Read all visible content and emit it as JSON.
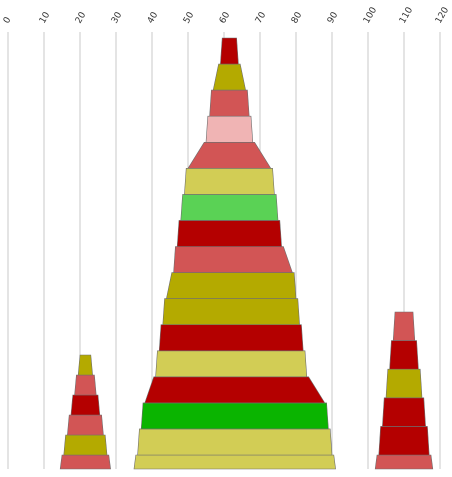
{
  "chart_data": {
    "type": "stacked-pyramid",
    "xlim": [
      0,
      120
    ],
    "xticks": [
      0,
      10,
      20,
      30,
      40,
      50,
      60,
      70,
      80,
      90,
      100,
      110,
      120
    ],
    "grid": true,
    "palette": {
      "dark_red": "#b40000",
      "red": "#d25555",
      "pink": "#f0b4b4",
      "olive": "#b4aa00",
      "khaki": "#d2cd55",
      "green": "#5ad255",
      "bright_green": "#0ab400"
    },
    "stacks": [
      {
        "segments": [
          {
            "color": "red",
            "values": [
              14.5,
              28.5
            ]
          },
          {
            "color": "olive",
            "values": [
              15.5,
              27.5
            ]
          },
          {
            "color": "red",
            "values": [
              16.5,
              26.5
            ]
          },
          {
            "color": "dark_red",
            "values": [
              17.5,
              25.5
            ]
          },
          {
            "color": "red",
            "values": [
              18.5,
              24.5
            ]
          },
          {
            "color": "olive",
            "values": [
              19.5,
              23.5
            ]
          }
        ]
      },
      {
        "segments": [
          {
            "color": "khaki",
            "values": [
              35,
              91
            ]
          },
          {
            "color": "khaki",
            "values": [
              36,
              90
            ]
          },
          {
            "color": "bright_green",
            "values": [
              37,
              89
            ]
          },
          {
            "color": "dark_red",
            "values": [
              38,
              88
            ]
          },
          {
            "color": "khaki",
            "values": [
              41,
              83
            ]
          },
          {
            "color": "dark_red",
            "values": [
              42,
              82
            ]
          },
          {
            "color": "olive",
            "values": [
              43,
              81
            ]
          },
          {
            "color": "olive",
            "values": [
              44,
              80
            ]
          },
          {
            "color": "red",
            "values": [
              46,
              79
            ]
          },
          {
            "color": "dark_red",
            "values": [
              47,
              76
            ]
          },
          {
            "color": "green",
            "values": [
              48,
              75
            ]
          },
          {
            "color": "khaki",
            "values": [
              49,
              74
            ]
          },
          {
            "color": "red",
            "values": [
              50,
              73
            ]
          },
          {
            "color": "pink",
            "values": [
              55,
              68
            ]
          },
          {
            "color": "red",
            "values": [
              56,
              67
            ]
          },
          {
            "color": "olive",
            "values": [
              57,
              66
            ]
          },
          {
            "color": "dark_red",
            "values": [
              59,
              64
            ]
          }
        ]
      },
      {
        "segments": [
          {
            "color": "red",
            "values": [
              102,
              118
            ]
          },
          {
            "color": "dark_red",
            "values": [
              103,
              117
            ]
          },
          {
            "color": "dark_red",
            "values": [
              104,
              116
            ]
          },
          {
            "color": "olive",
            "values": [
              105,
              115
            ]
          },
          {
            "color": "dark_red",
            "values": [
              106,
              114
            ]
          },
          {
            "color": "red",
            "values": [
              107,
              113
            ]
          }
        ]
      }
    ]
  }
}
